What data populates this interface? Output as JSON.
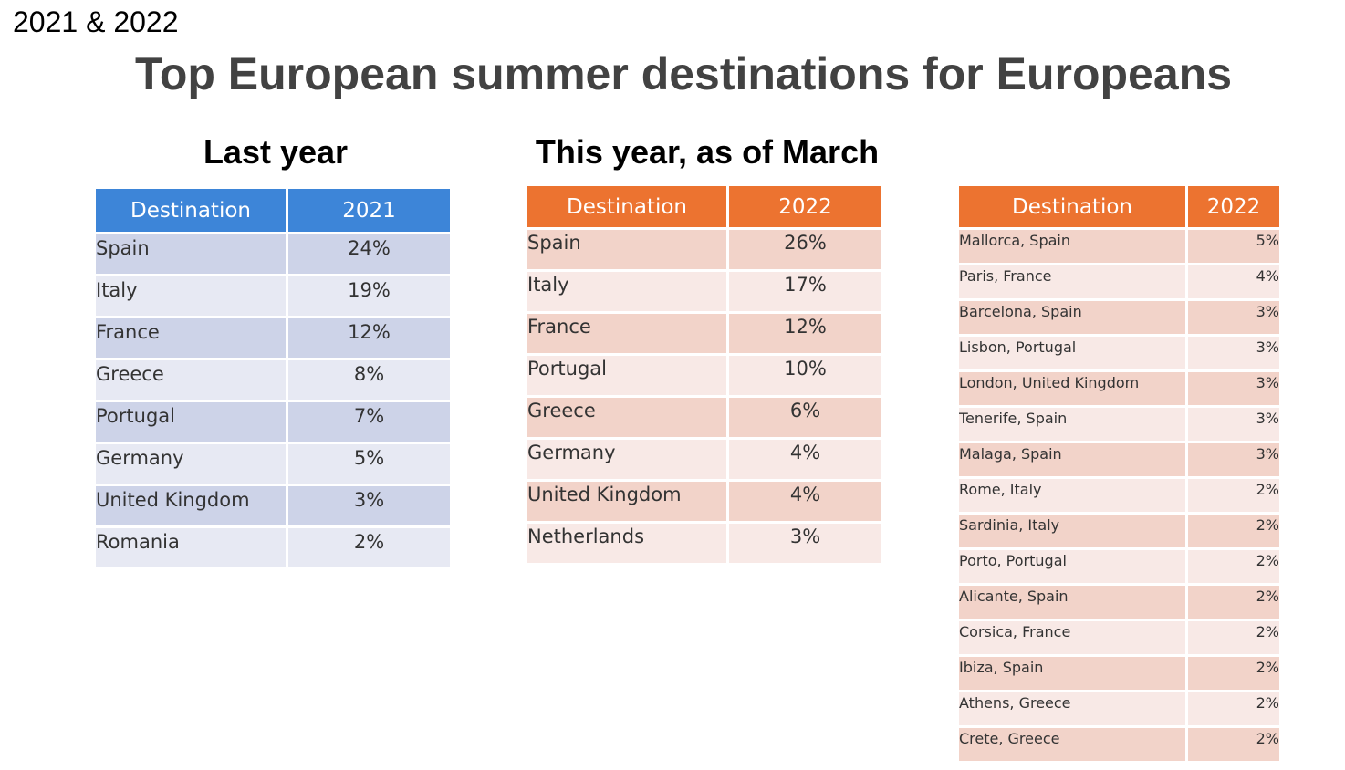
{
  "corner_label": "2021 & 2022",
  "title": "Top European summer destinations for Europeans",
  "last_year": {
    "subtitle": "Last year",
    "headers": [
      "Destination",
      "2021"
    ],
    "rows": [
      [
        "Spain",
        "24%"
      ],
      [
        "Italy",
        "19%"
      ],
      [
        "France",
        "12%"
      ],
      [
        "Greece",
        "8%"
      ],
      [
        "Portugal",
        "7%"
      ],
      [
        "Germany",
        "5%"
      ],
      [
        "United Kingdom",
        "3%"
      ],
      [
        "Romania",
        "2%"
      ]
    ]
  },
  "this_year": {
    "subtitle": "This year, as of March",
    "headers": [
      "Destination",
      "2022"
    ],
    "rows": [
      [
        "Spain",
        "26%"
      ],
      [
        "Italy",
        "17%"
      ],
      [
        "France",
        "12%"
      ],
      [
        "Portugal",
        "10%"
      ],
      [
        "Greece",
        "6%"
      ],
      [
        "Germany",
        "4%"
      ],
      [
        "United Kingdom",
        "4%"
      ],
      [
        "Netherlands",
        "3%"
      ]
    ]
  },
  "cities": {
    "headers": [
      "Destination",
      "2022"
    ],
    "rows": [
      [
        "Mallorca, Spain",
        "5%"
      ],
      [
        "Paris, France",
        "4%"
      ],
      [
        "Barcelona, Spain",
        "3%"
      ],
      [
        "Lisbon, Portugal",
        "3%"
      ],
      [
        "London, United Kingdom",
        "3%"
      ],
      [
        "Tenerife, Spain",
        "3%"
      ],
      [
        "Malaga, Spain",
        "3%"
      ],
      [
        "Rome, Italy",
        "2%"
      ],
      [
        "Sardinia, Italy",
        "2%"
      ],
      [
        "Porto, Portugal",
        "2%"
      ],
      [
        "Alicante, Spain",
        "2%"
      ],
      [
        "Corsica, France",
        "2%"
      ],
      [
        "Ibiza, Spain",
        "2%"
      ],
      [
        "Athens, Greece",
        "2%"
      ],
      [
        "Crete, Greece",
        "2%"
      ]
    ]
  },
  "colors": {
    "blue_header": "#3d85d8",
    "orange_header": "#ec7330",
    "title_gray": "#424242"
  }
}
